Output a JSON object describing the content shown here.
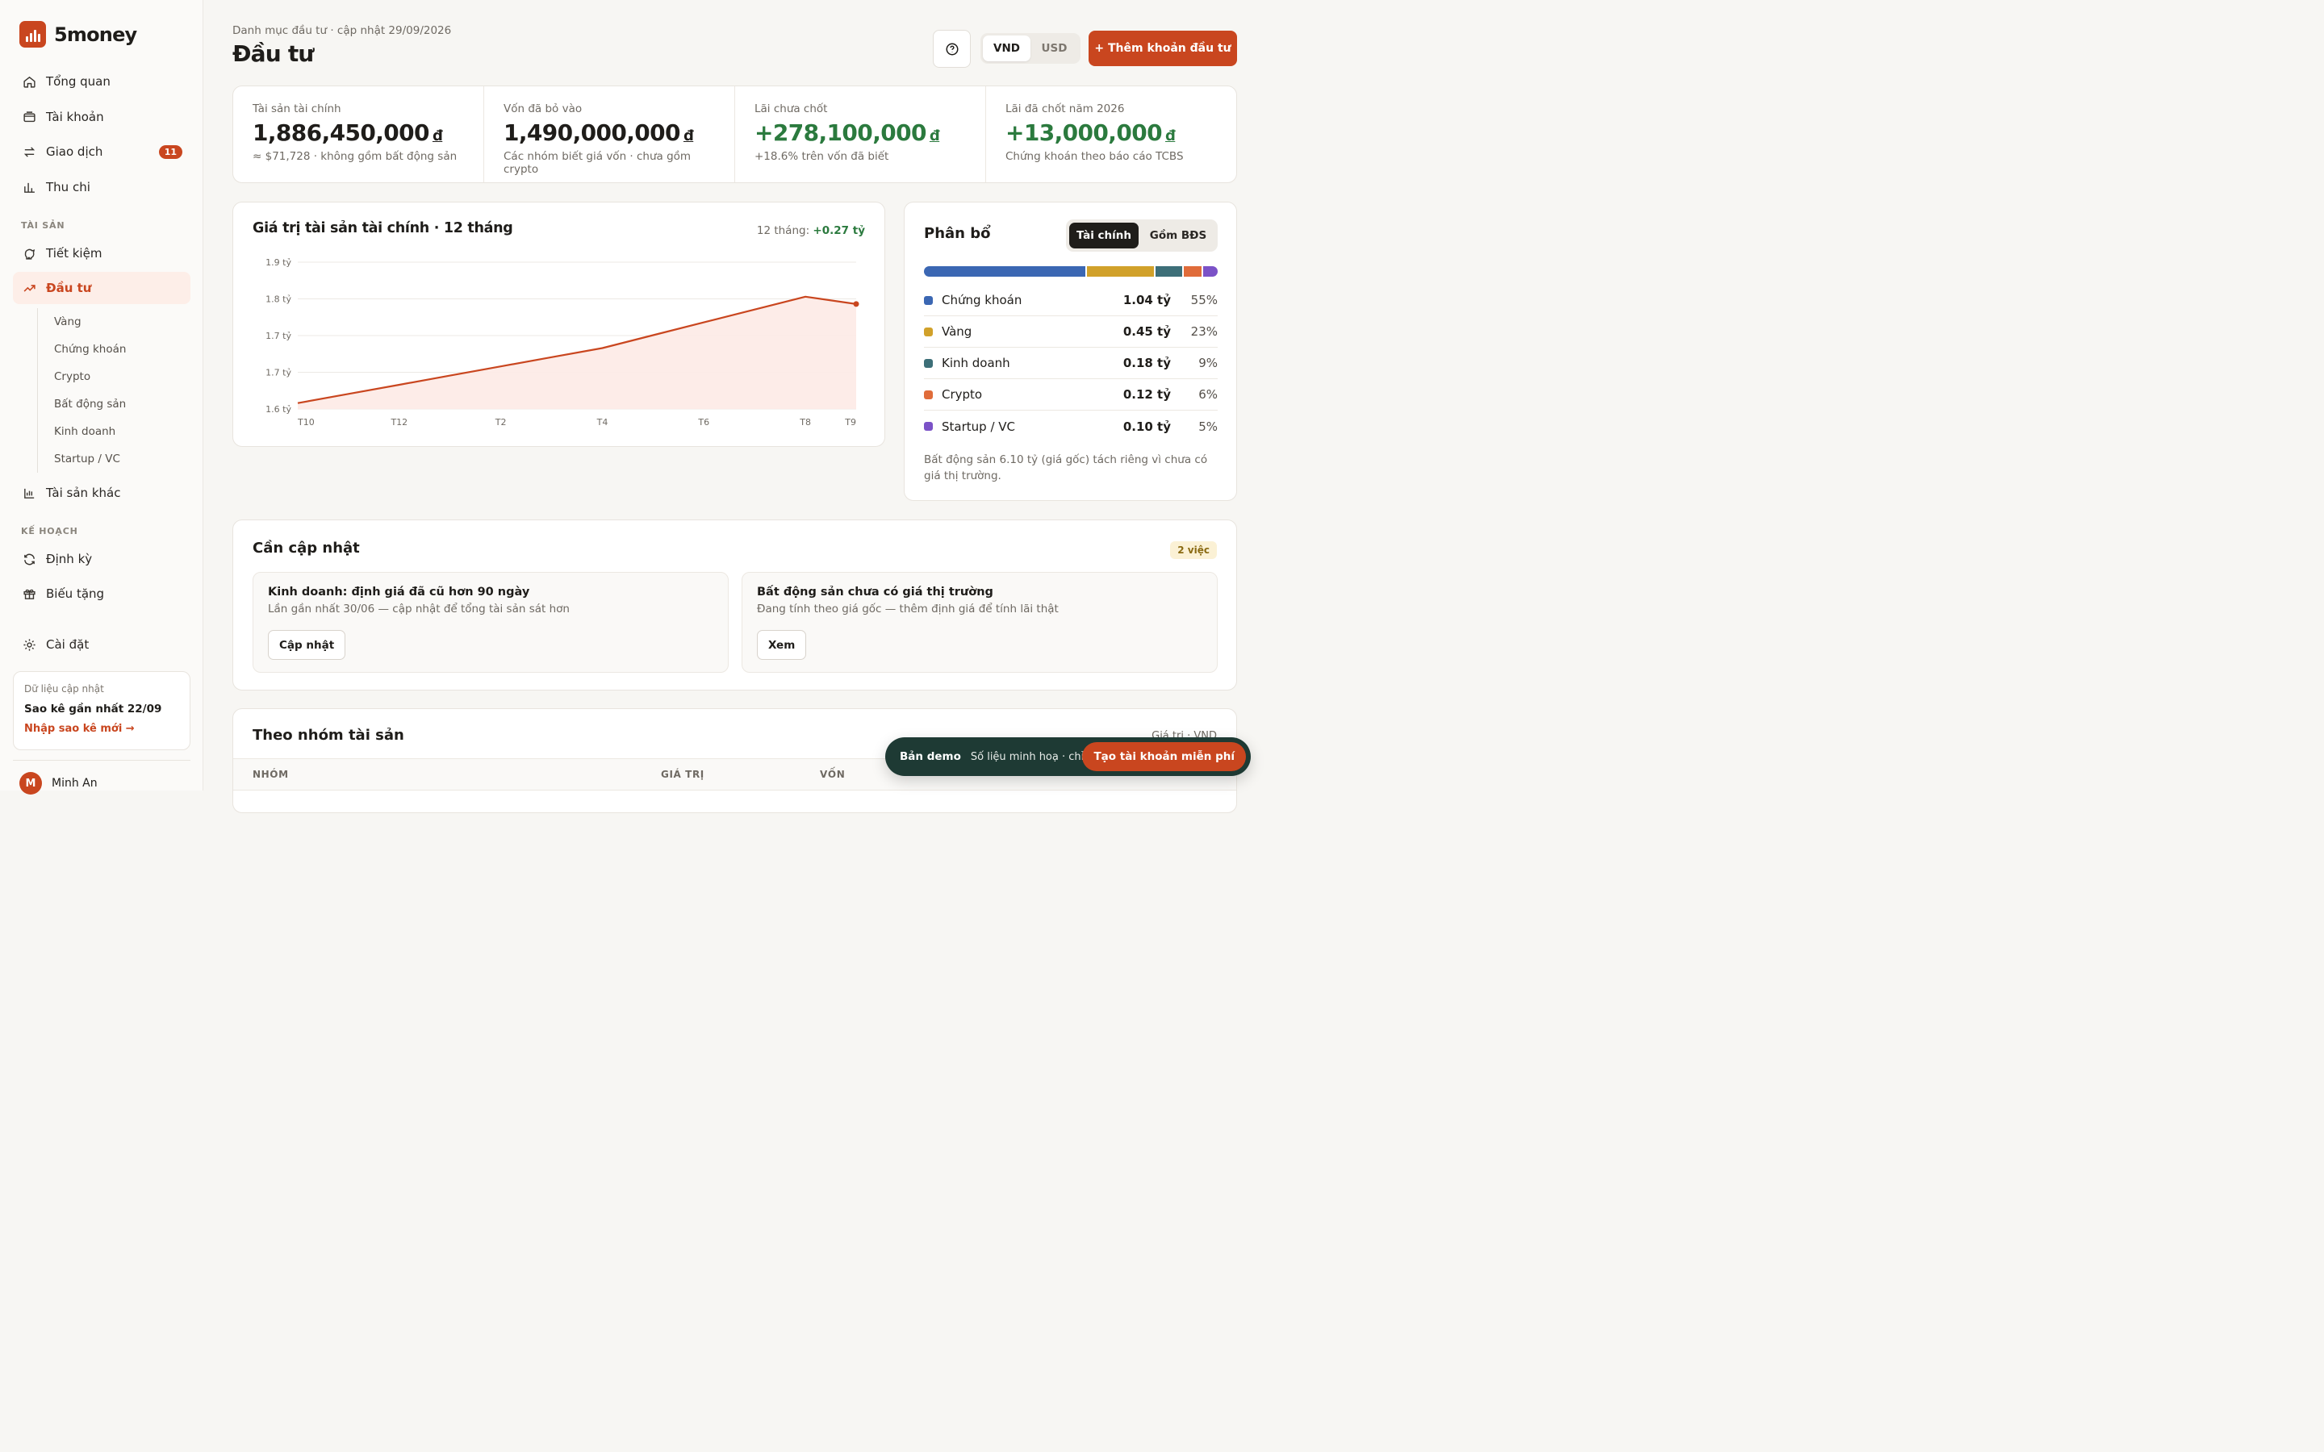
{
  "brand": {
    "name": "5money"
  },
  "sidebar": {
    "nav": [
      {
        "label": "Tổng quan",
        "icon": "home-icon"
      },
      {
        "label": "Tài khoản",
        "icon": "wallet-icon"
      },
      {
        "label": "Giao dịch",
        "icon": "transfer-icon",
        "badge": "11"
      },
      {
        "label": "Thu chi",
        "icon": "bar-chart-icon"
      }
    ],
    "section_assets": "TÀI SẢN",
    "assets": [
      {
        "label": "Tiết kiệm",
        "icon": "piggy-bank-icon"
      },
      {
        "label": "Đầu tư",
        "icon": "trending-up-icon",
        "active": true
      }
    ],
    "subnav": [
      "Vàng",
      "Chứng khoán",
      "Crypto",
      "Bất động sản",
      "Kinh doanh",
      "Startup / VC"
    ],
    "other_assets": "Tài sản khác",
    "section_plan": "KẾ HOẠCH",
    "plan": [
      {
        "label": "Định kỳ",
        "icon": "refresh-icon"
      },
      {
        "label": "Biếu tặng",
        "icon": "gift-icon"
      }
    ],
    "settings": "Cài đặt",
    "data_card": {
      "label": "Dữ liệu cập nhật",
      "value": "Sao kê gần nhất 22/09",
      "link": "Nhập sao kê mới →"
    },
    "user": {
      "initial": "M",
      "name": "Minh An"
    }
  },
  "header": {
    "breadcrumb": "Danh mục đầu tư · cập nhật 29/09/2026",
    "title": "Đầu tư",
    "currency": [
      "VND",
      "USD"
    ],
    "currency_selected": "VND",
    "add_button": "+ Thêm khoản đầu tư"
  },
  "stats": [
    {
      "label": "Tài sản tài chính",
      "value": "1,886,450,000",
      "unit": "đ",
      "sub": "≈ $71,728 · không gồm bất động sản"
    },
    {
      "label": "Vốn đã bỏ vào",
      "value": "1,490,000,000",
      "unit": "đ",
      "sub": "Các nhóm biết giá vốn · chưa gồm crypto"
    },
    {
      "label": "Lãi chưa chốt",
      "value": "+278,100,000",
      "unit": "đ",
      "sub": "+18.6% trên vốn đã biết"
    },
    {
      "label": "Lãi đã chốt năm 2026",
      "value": "+13,000,000",
      "unit": "đ",
      "sub": "Chứng khoán theo báo cáo TCBS"
    }
  ],
  "chart": {
    "title": "Giá trị tài sản tài chính · 12 tháng",
    "meta_label": "12 tháng:",
    "meta_value": "+0.27 tỷ"
  },
  "chart_data": {
    "type": "area",
    "x": [
      "T10",
      "T11",
      "T12",
      "T1",
      "T2",
      "T3",
      "T4",
      "T5",
      "T6",
      "T7",
      "T8",
      "T9"
    ],
    "x_tick_labels": [
      "T10",
      "T12",
      "T2",
      "T4",
      "T6",
      "T8",
      "T9"
    ],
    "y_tick_labels": [
      "1.9 tỷ",
      "1.8 tỷ",
      "1.7 tỷ",
      "1.7 tỷ",
      "1.6 tỷ"
    ],
    "values": [
      1.616,
      1.641,
      1.666,
      1.691,
      1.716,
      1.741,
      1.766,
      1.801,
      1.836,
      1.871,
      1.906,
      1.886
    ],
    "ylim": [
      1.6,
      2.0
    ],
    "color": "#c9461f",
    "grid": true
  },
  "allocation": {
    "title": "Phân bổ",
    "toggle": [
      "Tài chính",
      "Gồm BĐS"
    ],
    "toggle_selected": "Tài chính",
    "items": [
      {
        "name": "Chứng khoán",
        "amount": "1.04 tỷ",
        "pct": "55%",
        "share": 55,
        "color": "#3b67b3"
      },
      {
        "name": "Vàng",
        "amount": "0.45 tỷ",
        "pct": "23%",
        "share": 23,
        "color": "#d1a12a"
      },
      {
        "name": "Kinh doanh",
        "amount": "0.18 tỷ",
        "pct": "9%",
        "share": 9,
        "color": "#3d6f78"
      },
      {
        "name": "Crypto",
        "amount": "0.12 tỷ",
        "pct": "6%",
        "share": 6,
        "color": "#e06c3a"
      },
      {
        "name": "Startup / VC",
        "amount": "0.10 tỷ",
        "pct": "5%",
        "share": 5,
        "color": "#7b52c7"
      }
    ],
    "note": "Bất động sản 6.10 tỷ (giá gốc) tách riêng vì chưa có giá thị trường."
  },
  "updates": {
    "title": "Cần cập nhật",
    "badge": "2 việc",
    "tasks": [
      {
        "title": "Kinh doanh: định giá đã cũ hơn 90 ngày",
        "desc": "Lần gần nhất 30/06 — cập nhật để tổng tài sản sát hơn",
        "button": "Cập nhật"
      },
      {
        "title": "Bất động sản chưa có giá thị trường",
        "desc": "Đang tính theo giá gốc — thêm định giá để tính lãi thật",
        "button": "Xem"
      }
    ]
  },
  "groups": {
    "title": "Theo nhóm tài sản",
    "unit": "Giá trị · VND",
    "columns": [
      "NHÓM",
      "GIÁ TRỊ",
      "VỐN"
    ]
  },
  "demo": {
    "label": "Bản demo",
    "message": "Số liệu minh hoạ · chỉ xem",
    "cta": "Tạo tài khoản miễn phí"
  }
}
